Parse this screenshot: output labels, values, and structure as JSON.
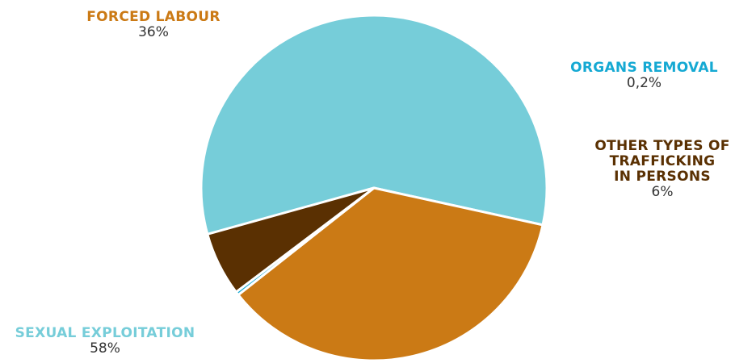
{
  "chart_data": {
    "type": "pie",
    "title": "",
    "slices": [
      {
        "label": "SEXUAL EXPLOITATION",
        "value": 58,
        "value_label": "58%",
        "color": "#76CDD9"
      },
      {
        "label": "FORCED LABOUR",
        "value": 36,
        "value_label": "36%",
        "color": "#CB7A15"
      },
      {
        "label": "ORGANS REMOVAL",
        "value": 0.2,
        "value_label": "0,2%",
        "color": "#15A9D3"
      },
      {
        "label": "OTHER TYPES OF TRAFFICKING IN PERSONS",
        "value": 6,
        "value_label": "6%",
        "color": "#5A3002"
      }
    ]
  }
}
